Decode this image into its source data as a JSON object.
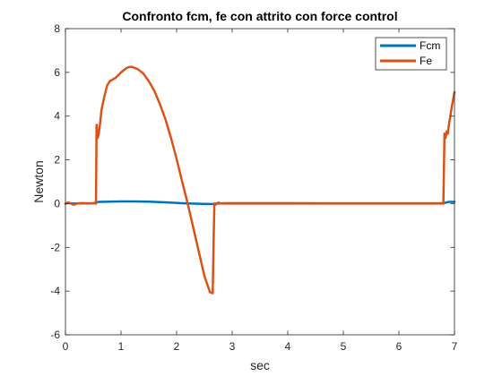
{
  "chart_data": {
    "type": "line",
    "title": "Confronto fcm, fe con attrito con force control",
    "xlabel": "sec",
    "ylabel": "Newton",
    "xlim": [
      0,
      7
    ],
    "ylim": [
      -6,
      8
    ],
    "xticks": [
      0,
      1,
      2,
      3,
      4,
      5,
      6,
      7
    ],
    "yticks": [
      -6,
      -4,
      -2,
      0,
      2,
      4,
      6,
      8
    ],
    "grid": false,
    "legend_position": "top-right",
    "series": [
      {
        "name": "Fcm",
        "color": "#0072BD",
        "x": [
          0,
          0.05,
          0.15,
          0.3,
          0.5,
          0.55,
          0.6,
          0.8,
          1.0,
          1.2,
          1.5,
          1.8,
          2.1,
          2.4,
          2.6,
          2.65,
          2.7,
          2.9,
          3.0,
          4.0,
          5.0,
          6.0,
          6.8,
          6.85,
          6.9,
          7.0
        ],
        "y": [
          0.0,
          0.03,
          0.0,
          0.02,
          0.01,
          0.05,
          0.08,
          0.09,
          0.1,
          0.1,
          0.09,
          0.06,
          0.02,
          -0.01,
          -0.02,
          -0.02,
          0.0,
          0.02,
          0.02,
          0.02,
          0.01,
          0.01,
          0.01,
          0.05,
          0.08,
          0.08
        ]
      },
      {
        "name": "Fe",
        "color": "#D95319",
        "x": [
          0,
          0.05,
          0.1,
          0.15,
          0.2,
          0.3,
          0.4,
          0.5,
          0.55,
          0.56,
          0.58,
          0.6,
          0.62,
          0.65,
          0.7,
          0.75,
          0.8,
          0.9,
          1.0,
          1.1,
          1.15,
          1.2,
          1.3,
          1.4,
          1.5,
          1.6,
          1.7,
          1.8,
          1.9,
          2.0,
          2.1,
          2.2,
          2.3,
          2.4,
          2.5,
          2.6,
          2.65,
          2.67,
          2.68,
          2.7,
          2.75,
          2.8,
          3.0,
          3.5,
          4.0,
          5.0,
          6.0,
          6.5,
          6.8,
          6.82,
          6.84,
          6.86,
          6.88,
          6.9,
          6.95,
          7.0
        ],
        "y": [
          0.0,
          0.05,
          0.0,
          -0.05,
          0.0,
          0.02,
          0.0,
          0.02,
          0.0,
          3.6,
          3.0,
          3.2,
          3.6,
          4.3,
          4.9,
          5.4,
          5.6,
          5.75,
          6.0,
          6.2,
          6.25,
          6.25,
          6.15,
          5.95,
          5.6,
          5.15,
          4.55,
          3.85,
          3.0,
          2.05,
          1.0,
          0.0,
          -1.1,
          -2.2,
          -3.3,
          -4.05,
          -4.1,
          -1.2,
          0.0,
          -0.05,
          0.05,
          0.0,
          0.0,
          0.0,
          0.0,
          0.0,
          0.0,
          0.0,
          0.0,
          3.2,
          3.0,
          3.3,
          3.2,
          3.6,
          4.4,
          5.1
        ]
      }
    ]
  }
}
